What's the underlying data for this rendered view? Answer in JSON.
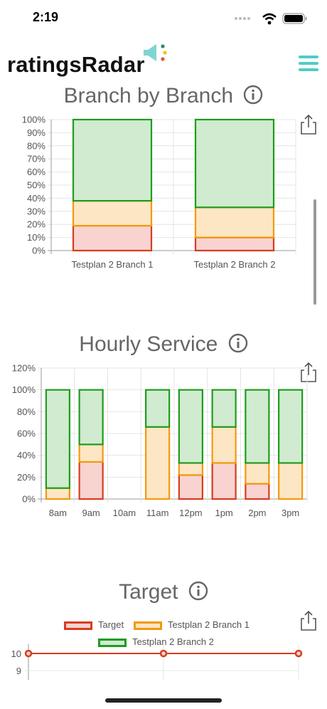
{
  "status": {
    "time": "2:19"
  },
  "header": {
    "logo": "ratingsRadar"
  },
  "sections": {
    "branch": {
      "title": "Branch by Branch"
    },
    "hourly": {
      "title": "Hourly Service"
    },
    "target": {
      "title": "Target"
    }
  },
  "colors": {
    "red": "#d73c1e",
    "red_fill": "#f8d3d0",
    "orange": "#f3990e",
    "orange_fill": "#fde6c4",
    "green": "#1e9c1e",
    "green_fill": "#d0ebcf",
    "accent": "#4ecdc4"
  },
  "chart_data": [
    {
      "type": "bar",
      "stacked": true,
      "categories": [
        "Testplan 2 Branch 1",
        "Testplan 2 Branch 2"
      ],
      "series": [
        {
          "color": "red",
          "values": [
            19,
            10
          ]
        },
        {
          "color": "orange",
          "values": [
            19,
            23
          ]
        },
        {
          "color": "green",
          "values": [
            62,
            67
          ]
        }
      ],
      "ylim": [
        0,
        100
      ],
      "yticks": [
        "0%",
        "10%",
        "20%",
        "30%",
        "40%",
        "50%",
        "60%",
        "70%",
        "80%",
        "90%",
        "100%"
      ],
      "grid": true
    },
    {
      "type": "bar",
      "stacked": true,
      "categories": [
        "8am",
        "9am",
        "10am",
        "11am",
        "12pm",
        "1pm",
        "2pm",
        "3pm"
      ],
      "series": [
        {
          "color": "red",
          "values": [
            0,
            34,
            0,
            0,
            22,
            33,
            14,
            0
          ]
        },
        {
          "color": "orange",
          "values": [
            10,
            16,
            0,
            66,
            11,
            33,
            19,
            33
          ]
        },
        {
          "color": "green",
          "values": [
            90,
            50,
            0,
            34,
            67,
            34,
            67,
            67
          ]
        }
      ],
      "ylim": [
        0,
        120
      ],
      "yticks": [
        "0%",
        "20%",
        "40%",
        "60%",
        "80%",
        "100%",
        "120%"
      ],
      "grid": true
    },
    {
      "type": "line",
      "legend": [
        "Target",
        "Testplan 2 Branch 1",
        "Testplan 2 Branch 2"
      ],
      "legend_placement": "top",
      "series": [
        {
          "name": "Target",
          "color": "red",
          "values": [
            10,
            10,
            10
          ]
        }
      ],
      "yticks": [
        "10",
        "9"
      ]
    }
  ]
}
